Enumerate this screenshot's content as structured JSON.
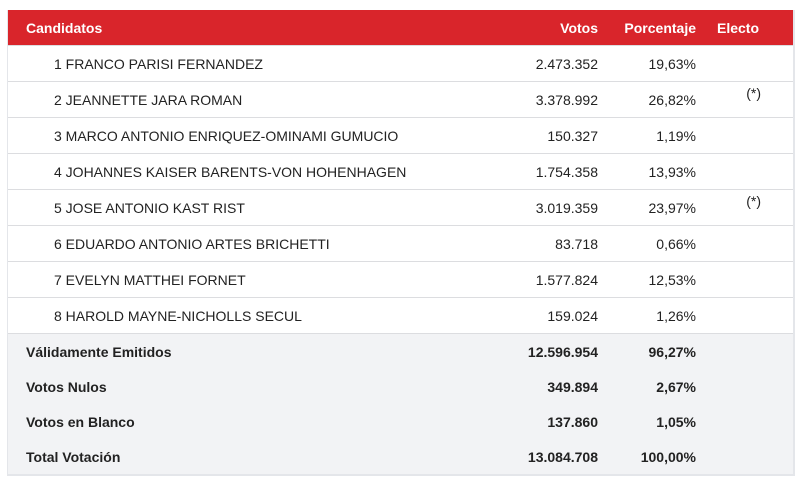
{
  "header": {
    "candidatos": "Candidatos",
    "votos": "Votos",
    "porcentaje": "Porcentaje",
    "electo": "Electo"
  },
  "candidates": [
    {
      "name": "1 FRANCO PARISI FERNANDEZ",
      "votos": "2.473.352",
      "pct": "19,63%",
      "electo": ""
    },
    {
      "name": "2 JEANNETTE JARA ROMAN",
      "votos": "3.378.992",
      "pct": "26,82%",
      "electo": "(*)"
    },
    {
      "name": "3 MARCO ANTONIO ENRIQUEZ-OMINAMI GUMUCIO",
      "votos": "150.327",
      "pct": "1,19%",
      "electo": ""
    },
    {
      "name": "4 JOHANNES KAISER BARENTS-VON HOHENHAGEN",
      "votos": "1.754.358",
      "pct": "13,93%",
      "electo": ""
    },
    {
      "name": "5 JOSE ANTONIO KAST RIST",
      "votos": "3.019.359",
      "pct": "23,97%",
      "electo": "(*)"
    },
    {
      "name": "6 EDUARDO ANTONIO ARTES BRICHETTI",
      "votos": "83.718",
      "pct": "0,66%",
      "electo": ""
    },
    {
      "name": "7 EVELYN MATTHEI FORNET",
      "votos": "1.577.824",
      "pct": "12,53%",
      "electo": ""
    },
    {
      "name": "8 HAROLD MAYNE-NICHOLLS SECUL",
      "votos": "159.024",
      "pct": "1,26%",
      "electo": ""
    }
  ],
  "summary": [
    {
      "label": "Válidamente Emitidos",
      "votos": "12.596.954",
      "pct": "96,27%"
    },
    {
      "label": "Votos Nulos",
      "votos": "349.894",
      "pct": "2,67%"
    },
    {
      "label": "Votos en Blanco",
      "votos": "137.860",
      "pct": "1,05%"
    },
    {
      "label": "Total Votación",
      "votos": "13.084.708",
      "pct": "100,00%"
    }
  ],
  "colors": {
    "header_bg": "#d9252b",
    "summary_bg": "#f2f3f5"
  }
}
